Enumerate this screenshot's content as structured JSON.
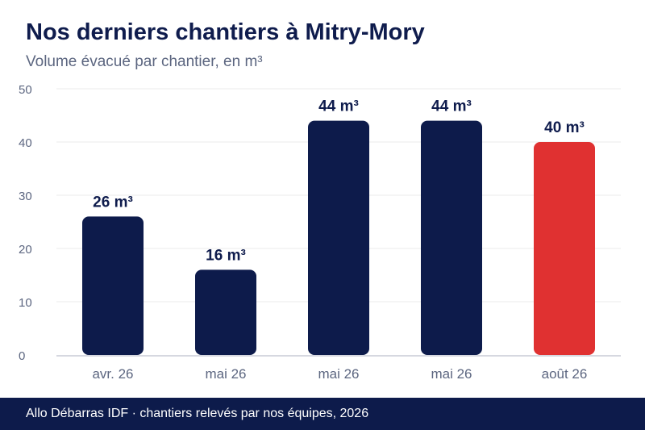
{
  "header": {
    "title": "Nos derniers chantiers à Mitry-Mory",
    "subtitle": "Volume évacué par chantier, en m³"
  },
  "footer": {
    "text": "Allo Débarras IDF · chantiers relevés par nos équipes, 2026"
  },
  "colors": {
    "bar": "#0d1b4b",
    "highlight": "#e03131",
    "grid": "#ebebeb",
    "axis": "#c9ccd6",
    "tick_text": "#5c6680",
    "label_text": "#0f1c4d"
  },
  "chart_data": {
    "type": "bar",
    "title": "Nos derniers chantiers à Mitry-Mory",
    "subtitle": "Volume évacué par chantier, en m³",
    "xlabel": "",
    "ylabel": "",
    "categories": [
      "avr. 26",
      "mai 26",
      "mai 26",
      "mai 26",
      "août 26"
    ],
    "values": [
      26,
      16,
      44,
      44,
      40
    ],
    "data_labels": [
      "26 m³",
      "16 m³",
      "44 m³",
      "44 m³",
      "40 m³"
    ],
    "highlight_index": 4,
    "ylim": [
      0,
      50
    ],
    "yticks": [
      0,
      10,
      20,
      30,
      40,
      50
    ],
    "grid": true,
    "legend": "none"
  }
}
